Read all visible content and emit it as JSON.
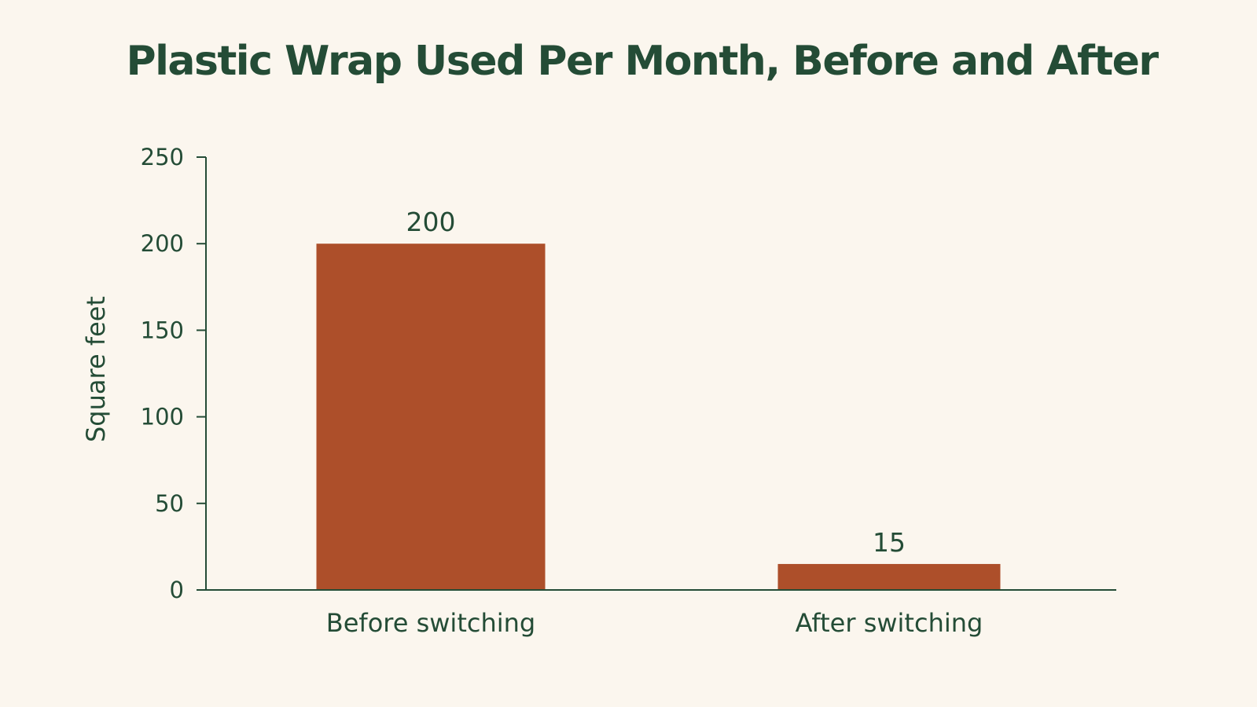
{
  "chart_data": {
    "type": "bar",
    "title": "Plastic Wrap Used Per Month, Before and After",
    "xlabel": "",
    "ylabel": "Square feet",
    "categories": [
      "Before switching",
      "After switching"
    ],
    "values": [
      200,
      15
    ],
    "data_labels": [
      "200",
      "15"
    ],
    "ylim": [
      0,
      250
    ],
    "yticks": [
      0,
      50,
      100,
      150,
      200,
      250
    ],
    "grid": false,
    "legend": "none",
    "colors": {
      "bar": "#ad4f2a",
      "text": "#244c36",
      "axis": "#244c36",
      "background": "#fbf6ee"
    }
  }
}
